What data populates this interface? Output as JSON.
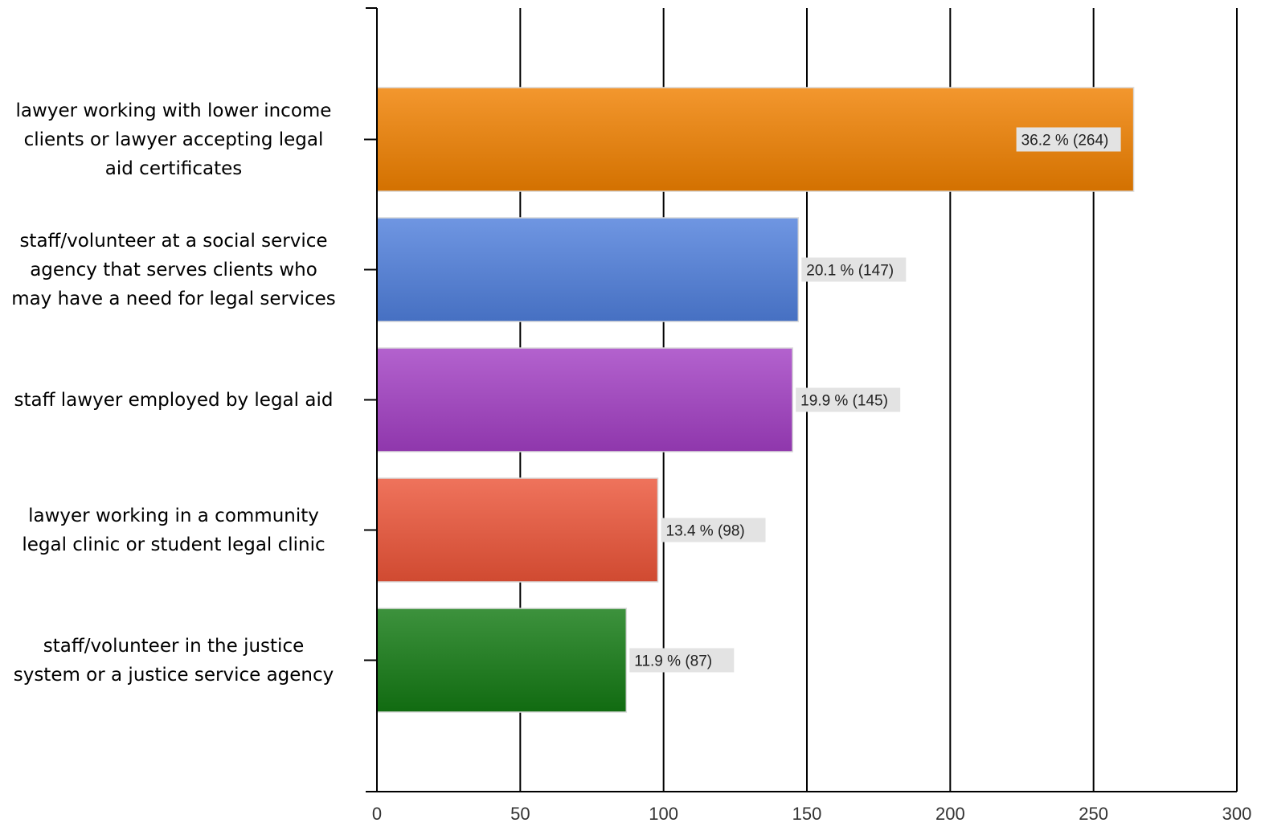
{
  "chart_data": {
    "type": "bar",
    "orientation": "horizontal",
    "title": "",
    "xlabel": "",
    "ylabel": "",
    "xlim": [
      0,
      300
    ],
    "x_ticks": [
      "0",
      "50",
      "100",
      "150",
      "200",
      "250",
      "300"
    ],
    "grid": "vertical",
    "categories": [
      {
        "lines": [
          "lawyer working with lower income",
          "clients or lawyer accepting legal",
          "aid certificates"
        ],
        "value": 264,
        "label": "36.2 % (264)",
        "color": "#f08000"
      },
      {
        "lines": [
          "staff/volunteer at a social service",
          "agency that serves clients who",
          "may have a need for legal services"
        ],
        "value": 147,
        "label": "20.1 % (147)",
        "color": "#4f7fdc"
      },
      {
        "lines": [
          "staff lawyer employed by legal aid"
        ],
        "value": 145,
        "label": "19.9 % (145)",
        "color": "#a23fc3"
      },
      {
        "lines": [
          "lawyer working in a community",
          "legal clinic or student legal clinic"
        ],
        "value": 98,
        "label": "13.4 % (98)",
        "color": "#ec5438"
      },
      {
        "lines": [
          "staff/volunteer in the justice",
          "system or a justice service agency"
        ],
        "value": 87,
        "label": "11.9 % (87)",
        "color": "#137a13"
      }
    ]
  }
}
